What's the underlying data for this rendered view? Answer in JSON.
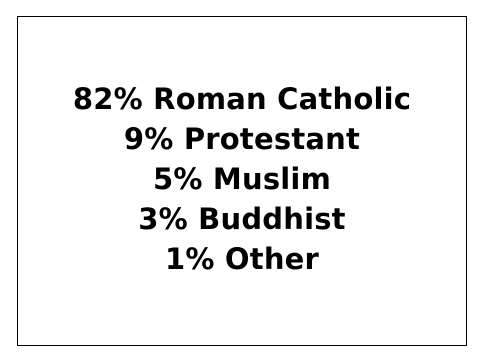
{
  "religion_breakdown": {
    "lines": [
      "82% Roman Catholic",
      "9% Protestant",
      "5% Muslim",
      "3% Buddhist",
      "1% Other"
    ]
  },
  "colors": {
    "background": "#ffffff",
    "border": "#000000",
    "text": "#000000"
  }
}
